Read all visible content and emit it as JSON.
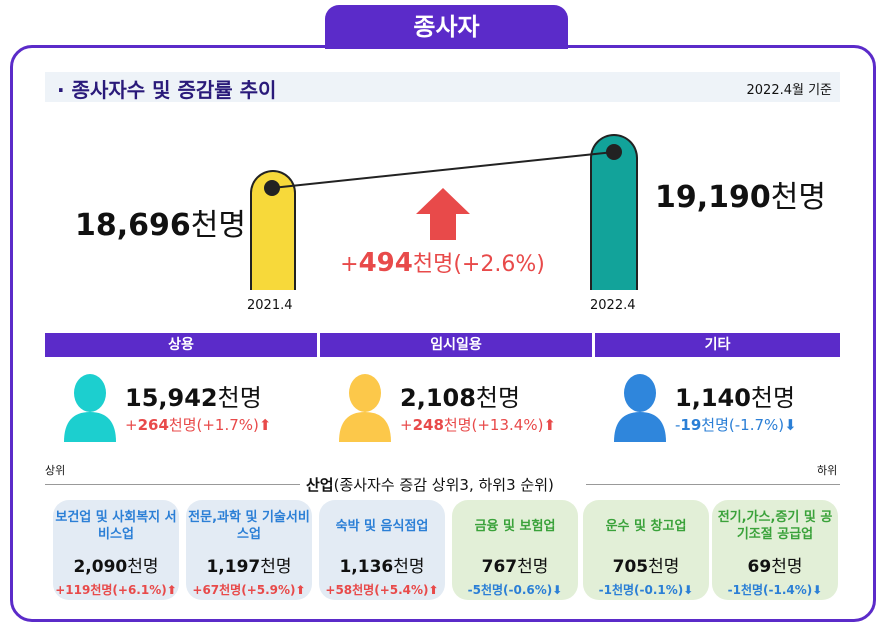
{
  "tab_title": "종사자",
  "section": {
    "title": "· 종사자수 및 증감률 추이",
    "basis": "2022.4월 기준"
  },
  "trend": {
    "y2021": {
      "label": "2021.4",
      "value": "18,696",
      "unit": "천명",
      "color": "#f7d93a"
    },
    "y2022": {
      "label": "2022.4",
      "value": "19,190",
      "unit": "천명",
      "color": "#12a39a"
    },
    "change": {
      "sign": "+",
      "value": "494",
      "unit": "천명",
      "pct": "(+2.6%)",
      "color": "#e84a4a",
      "icon": "arrow-up-icon"
    }
  },
  "categories": [
    {
      "label": "상용",
      "value": "15,942",
      "unit": "천명",
      "chg_sign": "+",
      "chg": "264",
      "chg_unit": "천명",
      "pct": "(+1.7%)",
      "dir": "up",
      "color": "#1ccfcf"
    },
    {
      "label": "임시일용",
      "value": "2,108",
      "unit": "천명",
      "chg_sign": "+",
      "chg": "248",
      "chg_unit": "천명",
      "pct": "(+13.4%)",
      "dir": "up",
      "color": "#fcc84a"
    },
    {
      "label": "기타",
      "value": "1,140",
      "unit": "천명",
      "chg_sign": "-",
      "chg": "19",
      "chg_unit": "천명",
      "pct": "(-1.7%)",
      "dir": "down",
      "color": "#2f86dc"
    }
  ],
  "industry": {
    "title": "산업",
    "subtitle": "(종사자수 증감 상위3, 하위3 순위)",
    "top_label": "상위",
    "bottom_label": "하위",
    "items": [
      {
        "name": "보건업 및 사회복지 서비스업",
        "value": "2,090",
        "unit": "천명",
        "chg": "+119천명(+6.1%)",
        "dir": "up"
      },
      {
        "name": "전문,과학 및 기술서비스업",
        "value": "1,197",
        "unit": "천명",
        "chg": "+67천명(+5.9%)",
        "dir": "up"
      },
      {
        "name": "숙박 및 음식점업",
        "value": "1,136",
        "unit": "천명",
        "chg": "+58천명(+5.4%)",
        "dir": "up"
      },
      {
        "name": "금융 및 보험업",
        "value": "767",
        "unit": "천명",
        "chg": "-5천명(-0.6%)",
        "dir": "down"
      },
      {
        "name": "운수 및 창고업",
        "value": "705",
        "unit": "천명",
        "chg": "-1천명(-0.1%)",
        "dir": "down"
      },
      {
        "name": "전기,가스,증기 및 공기조절 공급업",
        "value": "69",
        "unit": "천명",
        "chg": "-1천명(-1.4%)",
        "dir": "down"
      }
    ]
  }
}
